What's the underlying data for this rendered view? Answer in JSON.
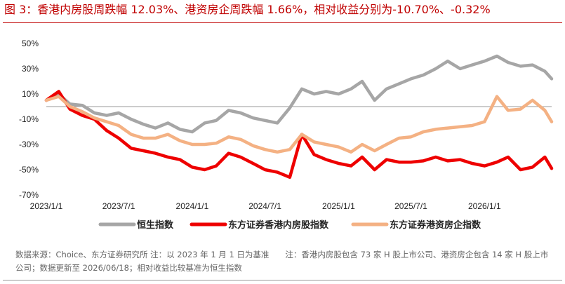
{
  "figure": {
    "title": "图 3：香港内房股周跌幅 12.03%、港资房企周跌幅 1.66%，相对收益分别为-10.70%、-0.32%",
    "footnote": "数据来源：Choice、东方证券研究所 注：以 2023 年 1 月 1 日为基准　　注：香港内房股包含 73 家 H 股上市公司、港资房企包含 14 家 H 股上市公司；数据更新至 2026/06/18；相对收益比较基准为恒生指数"
  },
  "chart_data": {
    "type": "line",
    "title": "",
    "xlabel": "",
    "ylabel": "",
    "ylim": [
      -70,
      50
    ],
    "yticks": [
      50,
      30,
      10,
      -10,
      -30,
      -50,
      -70
    ],
    "ytick_labels": [
      "50%",
      "30%",
      "10%",
      "-10%",
      "-30%",
      "-50%",
      "-70%"
    ],
    "x_range": [
      "2023/1/1",
      "2026/6/18"
    ],
    "xtick_labels": [
      "2023/1/1",
      "2023/7/1",
      "2024/1/1",
      "2024/7/1",
      "2025/1/1",
      "2025/7/1",
      "2026/1/1"
    ],
    "zero_line": true,
    "legend_position": "bottom",
    "x": [
      "2023/1/1",
      "2023/2/1",
      "2023/3/1",
      "2023/4/1",
      "2023/5/1",
      "2023/6/1",
      "2023/7/1",
      "2023/8/1",
      "2023/9/1",
      "2023/10/1",
      "2023/11/1",
      "2023/12/1",
      "2024/1/1",
      "2024/2/1",
      "2024/3/1",
      "2024/4/1",
      "2024/5/1",
      "2024/6/1",
      "2024/7/1",
      "2024/8/1",
      "2024/9/1",
      "2024/10/1",
      "2024/11/1",
      "2024/12/1",
      "2025/1/1",
      "2025/2/1",
      "2025/3/1",
      "2025/4/1",
      "2025/5/1",
      "2025/6/1",
      "2025/7/1",
      "2025/8/1",
      "2025/9/1",
      "2025/10/1",
      "2025/11/1",
      "2025/12/1",
      "2026/1/1",
      "2026/2/1",
      "2026/3/1",
      "2026/4/1",
      "2026/5/1",
      "2026/6/1",
      "2026/6/18"
    ],
    "series": [
      {
        "name": "恒生指数",
        "color": "#a6a6a6",
        "values": [
          5,
          10,
          2,
          1,
          -5,
          -7,
          -5,
          -10,
          -14,
          -17,
          -13,
          -18,
          -20,
          -13,
          -11,
          -3,
          -5,
          -9,
          -11,
          -13,
          -1,
          14,
          10,
          12,
          10,
          14,
          20,
          5,
          14,
          18,
          22,
          25,
          30,
          36,
          30,
          33,
          36,
          40,
          35,
          32,
          33,
          28,
          22
        ]
      },
      {
        "name": "东方证券香港内房股指数",
        "color": "#ee0000",
        "values": [
          5,
          12,
          -2,
          -7,
          -10,
          -19,
          -25,
          -33,
          -35,
          -37,
          -40,
          -42,
          -48,
          -50,
          -47,
          -37,
          -40,
          -45,
          -50,
          -52,
          -56,
          -22,
          -38,
          -42,
          -45,
          -47,
          -40,
          -50,
          -42,
          -44,
          -44,
          -43,
          -40,
          -43,
          -42,
          -45,
          -47,
          -44,
          -40,
          -50,
          -48,
          -40,
          -49
        ]
      },
      {
        "name": "东方证券港资房企指数",
        "color": "#f4b183",
        "values": [
          5,
          8,
          0,
          -4,
          -9,
          -12,
          -15,
          -22,
          -25,
          -25,
          -22,
          -27,
          -30,
          -30,
          -29,
          -24,
          -26,
          -31,
          -34,
          -36,
          -34,
          -22,
          -28,
          -30,
          -32,
          -36,
          -30,
          -35,
          -30,
          -25,
          -24,
          -20,
          -18,
          -17,
          -16,
          -15,
          -12,
          8,
          -3,
          -2,
          5,
          -3,
          -12
        ]
      }
    ]
  }
}
